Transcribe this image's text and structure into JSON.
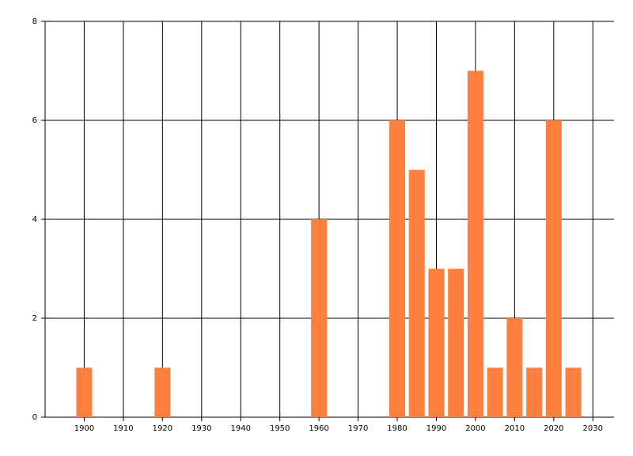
{
  "chart_data": {
    "type": "bar",
    "x": [
      1900,
      1920,
      1960,
      1980,
      1985,
      1990,
      1995,
      2000,
      2005,
      2010,
      2015,
      2020,
      2025
    ],
    "values": [
      1,
      1,
      4,
      6,
      5,
      3,
      3,
      7,
      1,
      2,
      1,
      6,
      1
    ],
    "color": "#ff7f3f",
    "xlim": [
      1890,
      2035
    ],
    "xticks": [
      1900,
      1910,
      1920,
      1930,
      1940,
      1950,
      1960,
      1970,
      1980,
      1990,
      2000,
      2010,
      2020,
      2030
    ],
    "ylim": [
      0,
      8
    ],
    "yticks": [
      0,
      2,
      4,
      6,
      8
    ],
    "grid": true
  }
}
